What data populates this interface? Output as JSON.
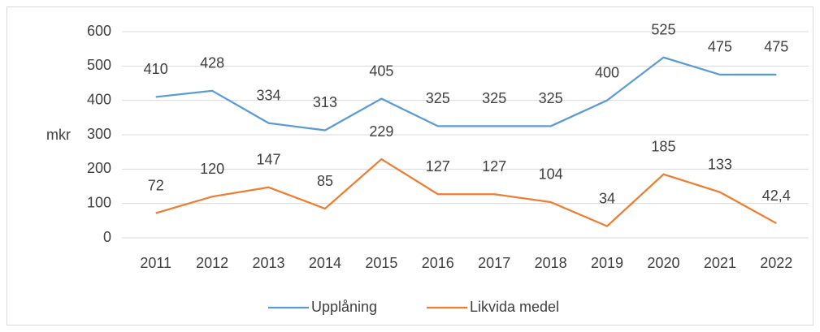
{
  "chart_data": {
    "type": "line",
    "y_label": "mkr",
    "categories": [
      "2011",
      "2012",
      "2013",
      "2014",
      "2015",
      "2016",
      "2017",
      "2018",
      "2019",
      "2020",
      "2021",
      "2022"
    ],
    "series": [
      {
        "name": "Upplåning",
        "color": "#5b9bd5",
        "values": [
          410,
          428,
          334,
          313,
          405,
          325,
          325,
          325,
          400,
          525,
          475,
          475
        ]
      },
      {
        "name": "Likvida medel",
        "color": "#ed7d31",
        "values": [
          72,
          120,
          147,
          85,
          229,
          127,
          127,
          104,
          34,
          185,
          133,
          42.4
        ],
        "value_labels": [
          "72",
          "120",
          "147",
          "85",
          "229",
          "127",
          "127",
          "104",
          "34",
          "185",
          "133",
          "42,4"
        ]
      }
    ],
    "ylim": [
      0,
      600
    ],
    "yticks": [
      0,
      100,
      200,
      300,
      400,
      500,
      600
    ],
    "grid": true,
    "legend": "bottom"
  }
}
